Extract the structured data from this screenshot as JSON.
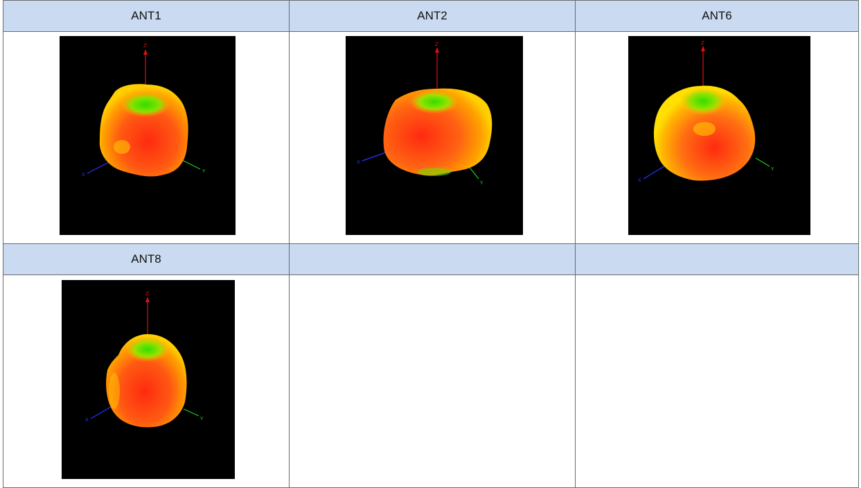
{
  "table": {
    "row1_headers": [
      "ANT1",
      "ANT2",
      "ANT6"
    ],
    "row2_headers": [
      "ANT8",
      "",
      ""
    ]
  },
  "plots": [
    {
      "antenna": "ANT1",
      "axis_labels": {
        "z": "Z",
        "x": "X",
        "y": "Y"
      }
    },
    {
      "antenna": "ANT2",
      "axis_labels": {
        "z": "Z",
        "x": "X",
        "y": "Y"
      }
    },
    {
      "antenna": "ANT6",
      "axis_labels": {
        "z": "Z",
        "x": "X",
        "y": "Y"
      }
    },
    {
      "antenna": "ANT8",
      "axis_labels": {
        "z": "Z",
        "x": "X",
        "y": "Y"
      }
    }
  ],
  "colors": {
    "header_bg": "#c9daf1",
    "plot_bg": "#000000",
    "pattern_hot": "#ff2a10",
    "pattern_mid": "#ffb000",
    "pattern_cool": "#22e000",
    "axis_z": "#e01010",
    "axis_x": "#2a35ff",
    "axis_y": "#20d020"
  }
}
